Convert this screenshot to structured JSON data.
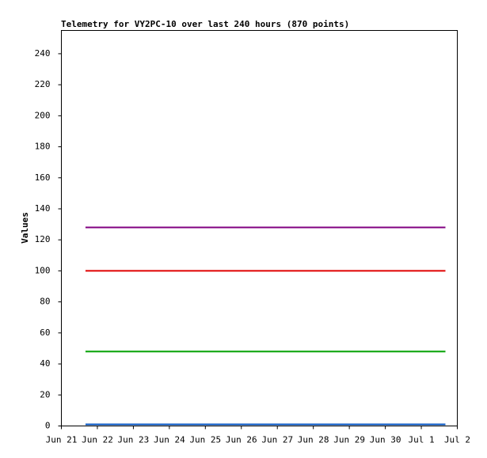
{
  "chart_data": {
    "type": "line",
    "title": "Telemetry for VY2PC-10 over last 240 hours (870 points)",
    "y_label": "Values",
    "x": [
      0.67,
      10.67
    ],
    "series": [
      {
        "color": "#800080",
        "values": [
          128,
          128
        ]
      },
      {
        "color": "#e00000",
        "values": [
          100,
          100
        ]
      },
      {
        "color": "#00a000",
        "values": [
          48,
          48
        ]
      },
      {
        "color": "#0050c0",
        "values": [
          1,
          1
        ]
      }
    ],
    "xlim": [
      0,
      11
    ],
    "xticks": [
      {
        "value": 0,
        "label": "Jun 21"
      },
      {
        "value": 1,
        "label": "Jun 22"
      },
      {
        "value": 2,
        "label": "Jun 23"
      },
      {
        "value": 3,
        "label": "Jun 24"
      },
      {
        "value": 4,
        "label": "Jun 25"
      },
      {
        "value": 5,
        "label": "Jun 26"
      },
      {
        "value": 6,
        "label": "Jun 27"
      },
      {
        "value": 7,
        "label": "Jun 28"
      },
      {
        "value": 8,
        "label": "Jun 29"
      },
      {
        "value": 9,
        "label": "Jun 30"
      },
      {
        "value": 10,
        "label": "Jul 1"
      },
      {
        "value": 11,
        "label": "Jul 2"
      }
    ],
    "ylim": [
      0,
      255
    ],
    "yticks": [
      0,
      20,
      40,
      60,
      80,
      100,
      120,
      140,
      160,
      180,
      200,
      220,
      240
    ],
    "grid": false
  }
}
